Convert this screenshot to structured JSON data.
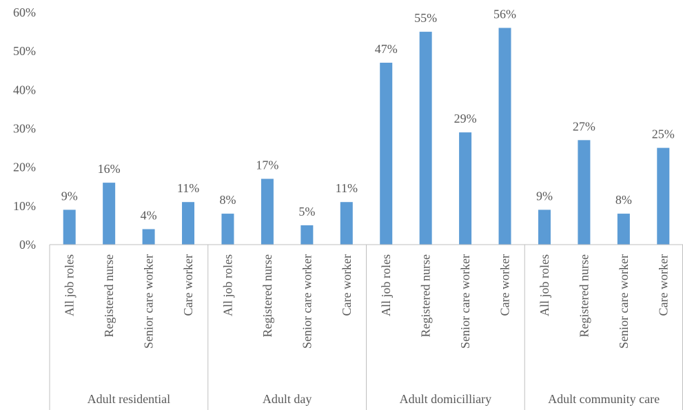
{
  "chart_data": {
    "type": "bar",
    "title": "",
    "xlabel": "",
    "ylabel": "",
    "ylim": [
      0,
      60
    ],
    "yticks": [
      0,
      10,
      20,
      30,
      40,
      50,
      60
    ],
    "y_tick_format": "percent",
    "grid": false,
    "legend": "none",
    "bar_color": "#5b9bd5",
    "groups": [
      {
        "name": "Adult residential",
        "categories": [
          "All job roles",
          "Registered nurse",
          "Senior care worker",
          "Care worker"
        ],
        "values": [
          9,
          16,
          4,
          11
        ],
        "labels": [
          "9%",
          "16%",
          "4%",
          "11%"
        ]
      },
      {
        "name": "Adult day",
        "categories": [
          "All job roles",
          "Registered nurse",
          "Senior care worker",
          "Care worker"
        ],
        "values": [
          8,
          17,
          5,
          11
        ],
        "labels": [
          "8%",
          "17%",
          "5%",
          "11%"
        ]
      },
      {
        "name": "Adult domicilliary",
        "categories": [
          "All job roles",
          "Registered nurse",
          "Senior care worker",
          "Care worker"
        ],
        "values": [
          47,
          55,
          29,
          56
        ],
        "labels": [
          "47%",
          "55%",
          "29%",
          "56%"
        ]
      },
      {
        "name": "Adult community care",
        "categories": [
          "All job roles",
          "Registered nurse",
          "Senior care worker",
          "Care worker"
        ],
        "values": [
          9,
          27,
          8,
          25
        ],
        "labels": [
          "9%",
          "27%",
          "8%",
          "25%"
        ]
      }
    ]
  }
}
